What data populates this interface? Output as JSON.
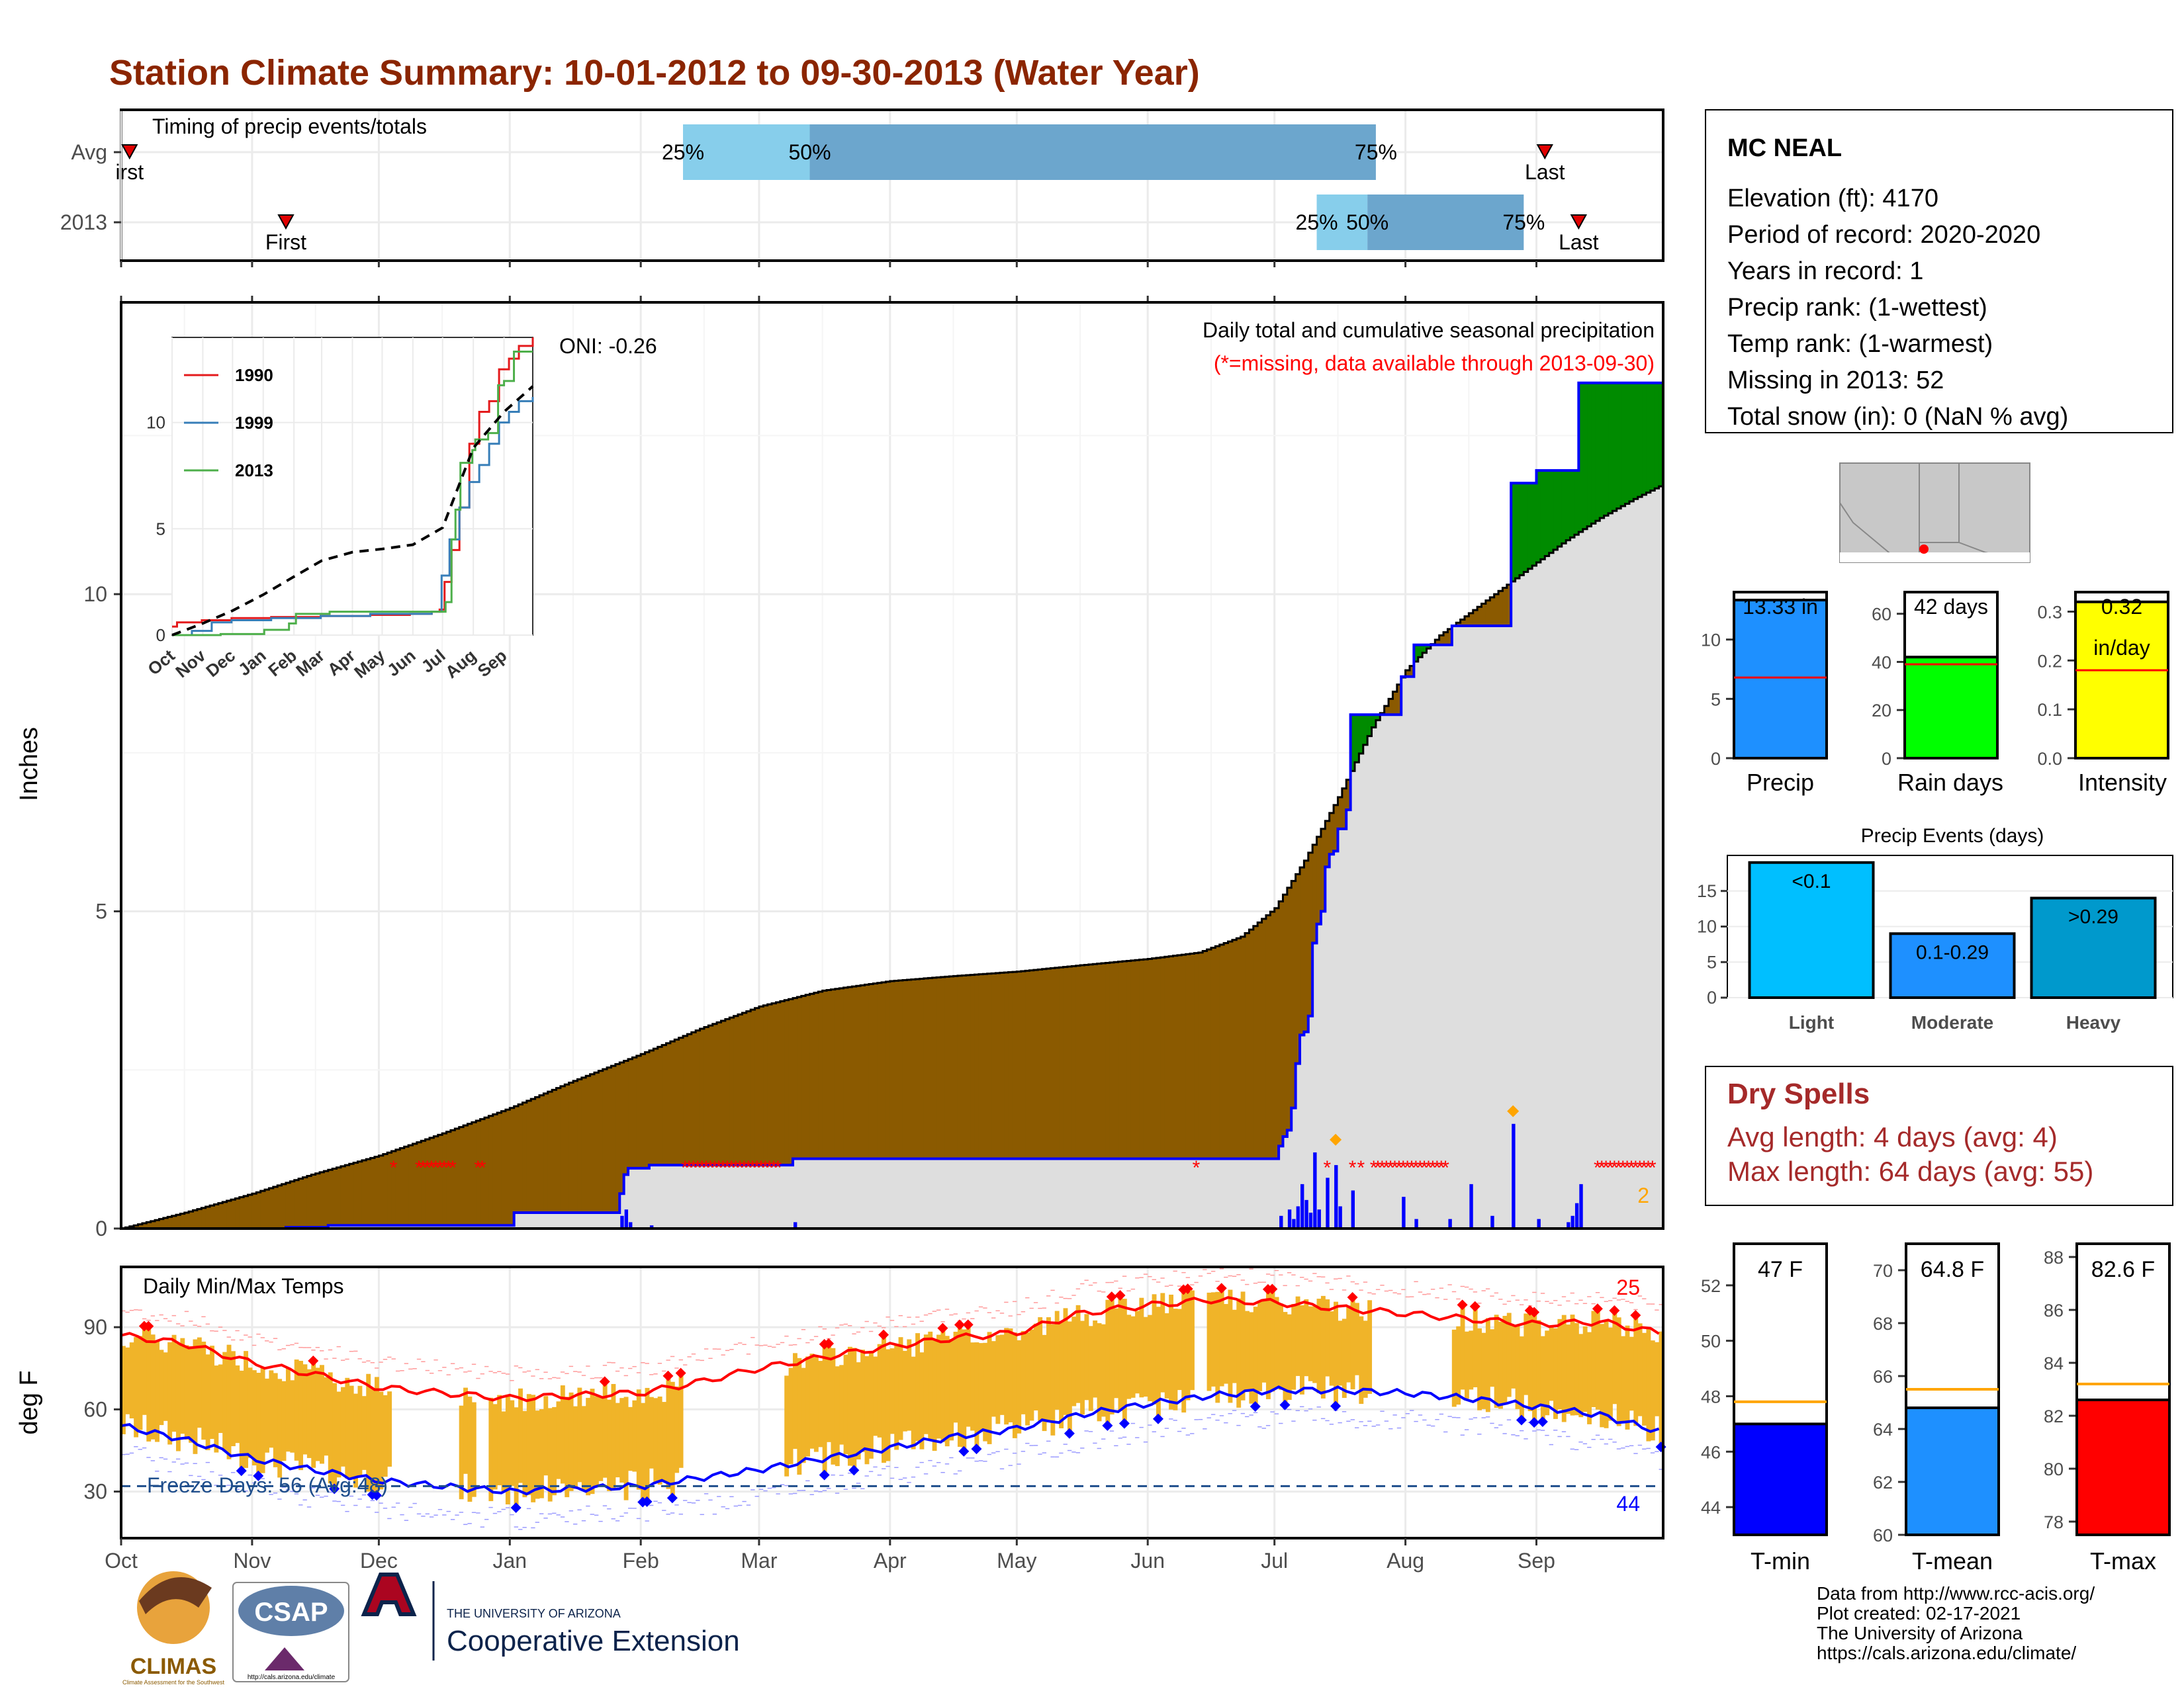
{
  "page": {
    "title": "Station Climate Summary: 10-01-2012 to 09-30-2013 (Water Year)",
    "title_color": "#8B2500",
    "footer": [
      "Data from http://www.rcc-acis.org/",
      "Plot created: 02-17-2021",
      "The University of Arizona",
      "https://cals.arizona.edu/climate/"
    ]
  },
  "logos": {
    "climas": "CLIMAS",
    "climas_sub": "Climate Assessment for the Southwest",
    "csap": "CSAP",
    "csap_url": "http://cals.arizona.edu/climate",
    "ua_line1": "THE UNIVERSITY OF ARIZONA",
    "ua_line2": "Cooperative Extension"
  },
  "station_info": {
    "name": "MC NEAL",
    "lines": [
      "Elevation (ft): 4170",
      "Period of record: 2020-2020",
      "Years in record: 1",
      "Precip rank:  (1-wettest)",
      "Temp rank:  (1-warmest)",
      "Missing in 2013: 52",
      "Total snow (in): 0 (NaN % avg)"
    ]
  },
  "months": [
    "Oct",
    "Nov",
    "Dec",
    "Jan",
    "Feb",
    "Mar",
    "Apr",
    "May",
    "Jun",
    "Jul",
    "Aug",
    "Sep"
  ],
  "month_starts": [
    0,
    31,
    61,
    92,
    123,
    151,
    182,
    212,
    243,
    273,
    304,
    335
  ],
  "timing": {
    "title": "Timing of precip events/totals",
    "rows": [
      {
        "label": "Avg",
        "first_day": 2,
        "first_label": "irst",
        "last_day": 337,
        "last_label": "Last",
        "p25": 133,
        "p50": 163,
        "p75": 297,
        "p25_label": "25%",
        "p50_label": "50%",
        "p75_label": "75%"
      },
      {
        "label": "2013",
        "first_day": 39,
        "first_label": "First",
        "last_day": 345,
        "last_label": "Last",
        "p25": 283,
        "p50": 295,
        "p75": 332,
        "p25_label": "25%",
        "p50_label": "50%",
        "p75_label": "75%"
      }
    ],
    "colors": {
      "light": "#87CEEB",
      "mid": "#6CA6CD",
      "marker": "#E00000"
    }
  },
  "precip_panel": {
    "ylabel": "Inches",
    "yticks": [
      0,
      5,
      10
    ],
    "ymax": 14.6,
    "label1": "Daily total and cumulative seasonal precipitation",
    "label2": "(*=missing, data available through 2013-09-30)",
    "oni": "ONI: -0.26",
    "corner_count": "2",
    "colors": {
      "deficit": "#8B5A00",
      "surplus": "#008B00",
      "avg_fill": "#DEDEDE",
      "obs_line": "#0000FF",
      "bars": "#0000FF",
      "missing": "#FF0000",
      "extreme": "#FFA500"
    },
    "avg_cumulative": {
      "x": [
        0,
        15,
        31,
        45,
        61,
        76,
        92,
        106,
        123,
        137,
        151,
        166,
        182,
        197,
        212,
        227,
        243,
        255,
        265,
        273,
        280,
        288,
        296,
        304,
        312,
        320,
        328,
        335,
        342,
        350,
        358,
        364
      ],
      "y": [
        0,
        0.25,
        0.55,
        0.85,
        1.15,
        1.5,
        1.9,
        2.3,
        2.75,
        3.15,
        3.5,
        3.75,
        3.9,
        3.98,
        4.05,
        4.15,
        4.25,
        4.35,
        4.6,
        5.05,
        5.8,
        6.8,
        7.9,
        8.8,
        9.35,
        9.75,
        10.15,
        10.5,
        10.85,
        11.2,
        11.5,
        11.7
      ]
    },
    "obs_cumulative": {
      "x": [
        0,
        38,
        39,
        48,
        49,
        92,
        93,
        117,
        118,
        119,
        120,
        124,
        125,
        158,
        159,
        273,
        274,
        275,
        276,
        277,
        278,
        279,
        280,
        281,
        282,
        283,
        284,
        285,
        286,
        287,
        288,
        290,
        291,
        293,
        294,
        302,
        303,
        305,
        306,
        314,
        315,
        318,
        319,
        328,
        329,
        334,
        335,
        344,
        345,
        364
      ],
      "y": [
        0,
        0,
        0.02,
        0.02,
        0.05,
        0.05,
        0.25,
        0.25,
        0.55,
        0.85,
        0.95,
        0.95,
        1.0,
        1.0,
        1.1,
        1.1,
        1.3,
        1.45,
        1.55,
        1.9,
        2.6,
        3.05,
        3.1,
        3.35,
        4.5,
        4.8,
        5.0,
        5.7,
        5.9,
        5.95,
        6.3,
        6.6,
        8.1,
        8.1,
        8.1,
        8.1,
        8.7,
        8.7,
        9.2,
        9.2,
        9.5,
        9.5,
        9.5,
        9.5,
        11.75,
        11.75,
        11.95,
        11.95,
        13.33,
        13.33
      ]
    },
    "daily_bars": {
      "day": [
        118,
        119,
        120,
        125,
        159,
        274,
        276,
        277,
        278,
        279,
        280,
        281,
        282,
        283,
        285,
        287,
        288,
        291,
        303,
        306,
        314,
        319,
        324,
        329,
        335,
        342,
        343,
        344,
        345
      ],
      "value": [
        0.2,
        0.3,
        0.1,
        0.05,
        0.1,
        0.2,
        0.3,
        0.15,
        0.35,
        0.7,
        0.45,
        0.25,
        1.2,
        0.3,
        0.8,
        1.0,
        0.35,
        0.6,
        0.5,
        0.15,
        0.15,
        0.7,
        0.2,
        1.65,
        0.15,
        0.1,
        0.2,
        0.4,
        0.7
      ]
    },
    "missing_days": [
      64,
      70,
      71,
      72,
      73,
      74,
      75,
      76,
      77,
      78,
      84,
      85,
      133,
      134,
      135,
      136,
      137,
      138,
      139,
      140,
      141,
      142,
      143,
      144,
      145,
      146,
      147,
      148,
      149,
      150,
      151,
      152,
      153,
      154,
      155,
      254,
      285,
      291,
      293,
      296,
      297,
      298,
      299,
      300,
      301,
      302,
      303,
      304,
      305,
      306,
      307,
      308,
      309,
      310,
      311,
      312,
      313,
      349,
      350,
      351,
      352,
      353,
      354,
      355,
      356,
      357,
      358,
      359,
      360,
      361,
      362
    ],
    "extreme_days": [
      {
        "day": 287,
        "value": 1.4
      },
      {
        "day": 329,
        "value": 1.85
      }
    ]
  },
  "inset": {
    "series": [
      {
        "name": "1990",
        "color": "#E41A1C",
        "x": [
          0,
          5,
          30,
          60,
          100,
          150,
          200,
          240,
          255,
          262,
          270,
          275,
          282,
          290,
          300,
          310,
          320,
          330,
          340,
          350,
          364
        ],
        "y": [
          0.4,
          0.6,
          0.7,
          0.8,
          0.85,
          0.9,
          0.95,
          1.0,
          1.0,
          1.1,
          1.2,
          2.5,
          4.0,
          6.0,
          9.0,
          10.5,
          11.0,
          12.5,
          13.0,
          13.6,
          14.0
        ]
      },
      {
        "name": "1999",
        "color": "#377EB8",
        "x": [
          0,
          20,
          40,
          60,
          100,
          150,
          200,
          240,
          262,
          272,
          280,
          290,
          300,
          310,
          320,
          330,
          340,
          350,
          364
        ],
        "y": [
          0,
          0.2,
          0.6,
          0.7,
          0.8,
          0.9,
          1.0,
          1.0,
          1.1,
          2.8,
          4.5,
          6.0,
          7.2,
          8.0,
          9.0,
          10.0,
          10.5,
          11.0,
          11.2
        ]
      },
      {
        "name": "2013",
        "color": "#4DAF4A",
        "x": [
          0,
          38,
          49,
          93,
          118,
          125,
          159,
          273,
          276,
          282,
          286,
          291,
          303,
          306,
          319,
          329,
          335,
          345,
          364
        ],
        "y": [
          0,
          0,
          0.05,
          0.25,
          0.55,
          1.0,
          1.1,
          1.1,
          1.55,
          4.5,
          5.9,
          8.1,
          8.7,
          9.2,
          9.5,
          11.75,
          11.95,
          13.33,
          13.33
        ]
      }
    ],
    "avg": {
      "x": [
        0,
        31,
        61,
        92,
        123,
        151,
        182,
        212,
        243,
        273,
        304,
        335,
        364
      ],
      "y": [
        0,
        0.55,
        1.15,
        1.9,
        2.75,
        3.5,
        3.9,
        4.05,
        4.25,
        5.05,
        8.8,
        10.5,
        11.7
      ]
    },
    "yticks": [
      0,
      5,
      10
    ],
    "ymax": 14.0
  },
  "temp_panel": {
    "ylabel": "deg F",
    "title": "Daily Min/Max Temps",
    "yticks": [
      30,
      60,
      90
    ],
    "ymin": 13,
    "ymax": 112,
    "freeze_label": "Freeze Days: 56 (Avg:48)",
    "freeze_line": 32,
    "hot_count": "25",
    "cold_count": "44",
    "colors": {
      "bar": "#F0B429",
      "max_avg": "#FF0000",
      "min_avg": "#0000FF",
      "freeze": "#1F4E8C"
    },
    "max_avg": {
      "x": [
        0,
        15,
        31,
        45,
        61,
        76,
        92,
        106,
        123,
        137,
        151,
        166,
        182,
        197,
        212,
        227,
        243,
        258,
        273,
        288,
        304,
        319,
        335,
        350,
        364
      ],
      "y": [
        87,
        84,
        77,
        73,
        68,
        66,
        64,
        65,
        66,
        70,
        75,
        79,
        83,
        86,
        88,
        95,
        98,
        100,
        99,
        97,
        95,
        93,
        91,
        92,
        88
      ]
    },
    "min_avg": {
      "x": [
        0,
        15,
        31,
        45,
        61,
        76,
        92,
        106,
        123,
        137,
        151,
        166,
        182,
        197,
        212,
        227,
        243,
        258,
        273,
        288,
        304,
        319,
        335,
        350,
        364
      ],
      "y": [
        54,
        49,
        42,
        38,
        34,
        32,
        30,
        31,
        32,
        35,
        38,
        42,
        46,
        50,
        53,
        58,
        62,
        65,
        67,
        67,
        66,
        64,
        61,
        58,
        52
      ]
    }
  },
  "summary_bars": {
    "precip": {
      "label": "Precip",
      "value": 13.33,
      "value_label": "13.33 in",
      "avg": 6.8,
      "max": 14,
      "ticks": [
        0,
        5,
        10
      ],
      "color": "#1E90FF"
    },
    "rain_days": {
      "label": "Rain days",
      "value": 42,
      "value_label": "42 days",
      "avg": 39,
      "max": 69,
      "ticks": [
        0,
        20,
        40,
        60
      ],
      "color": "#00FF00"
    },
    "intensity": {
      "label": "Intensity",
      "value": 0.32,
      "value_label": "0.32",
      "value_label2": "in/day",
      "avg": 0.18,
      "max": 0.34,
      "ticks": [
        0.0,
        0.1,
        0.2,
        0.3
      ],
      "color": "#FFFF00"
    }
  },
  "events": {
    "title": "Precip Events (days)",
    "categories": [
      "Light",
      "Moderate",
      "Heavy"
    ],
    "values": [
      19,
      9,
      14
    ],
    "value_labels": [
      "<0.1",
      "0.1-0.29",
      ">0.29"
    ],
    "colors": [
      "#00BFFF",
      "#1E90FF",
      "#0099CC"
    ],
    "ticks": [
      0,
      5,
      10,
      15
    ],
    "max": 20
  },
  "dry_spells": {
    "title": "Dry Spells",
    "lines": [
      "Avg length: 4 days (avg: 4)",
      "Max length: 64 days (avg: 55)"
    ],
    "color": "#A52A2A"
  },
  "temp_bars": [
    {
      "label": "T-min",
      "value": 47,
      "value_label": "47 F",
      "avg": 47.8,
      "min": 43,
      "max": 53.5,
      "ticks": [
        44,
        46,
        48,
        50,
        52
      ],
      "color": "#0000FF"
    },
    {
      "label": "T-mean",
      "value": 64.8,
      "value_label": "64.8 F",
      "avg": 65.5,
      "min": 60,
      "max": 71,
      "ticks": [
        60,
        62,
        64,
        66,
        68,
        70
      ],
      "color": "#1E90FF"
    },
    {
      "label": "T-max",
      "value": 82.6,
      "value_label": "82.6 F",
      "avg": 83.2,
      "min": 77.5,
      "max": 88.5,
      "ticks": [
        78,
        80,
        82,
        84,
        86,
        88
      ],
      "color": "#FF0000"
    }
  ]
}
